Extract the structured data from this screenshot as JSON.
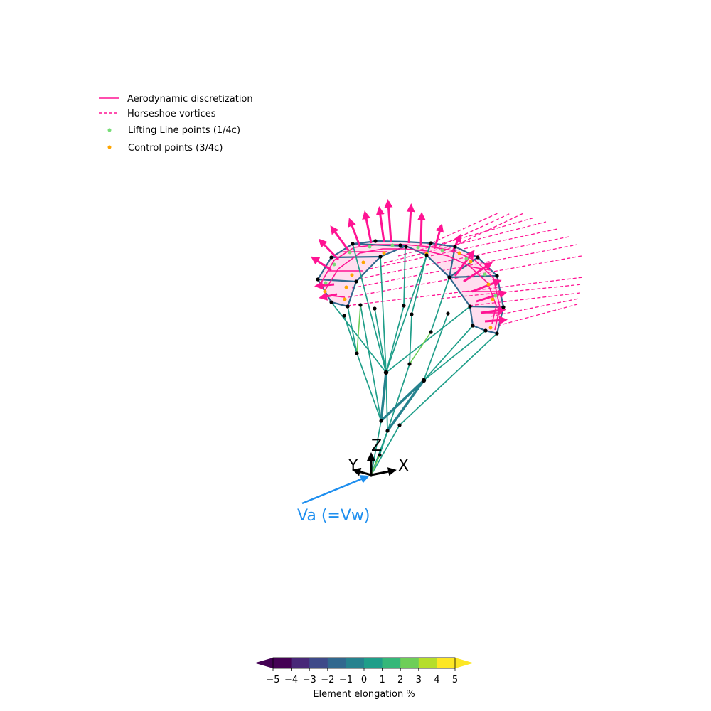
{
  "legend": {
    "aero_label": "Aerodynamic discretization",
    "horseshoe_label": "Horseshoe vortices",
    "lifting_line_label": "Lifting Line points (1/4c)",
    "control_points_label": "Control points (3/4c)"
  },
  "axes": {
    "z_label": "Z",
    "y_label": "Y",
    "x_label": "X"
  },
  "wind_label": "Va (=Vw)",
  "colorbar": {
    "label": "Element elongation %",
    "ticks": [
      "−5",
      "−4",
      "−3",
      "−2",
      "−1",
      "0",
      "1",
      "2",
      "3",
      "4",
      "5"
    ],
    "min": -5,
    "max": 5,
    "colors": [
      "#440154",
      "#482878",
      "#3e4a89",
      "#31688e",
      "#26828e",
      "#1f9e89",
      "#35b779",
      "#6ece58",
      "#b5de2b",
      "#fde725"
    ],
    "under_color": "#440154",
    "over_color": "#fde725"
  },
  "colors": {
    "aero": "#ff1493",
    "structure": "#1f9e89",
    "structure_light": "#6ece58",
    "structure_dark": "#26828e",
    "wind": "#1f8fef",
    "lifting_line": "#77dd77",
    "control_point": "#ffa500"
  }
}
